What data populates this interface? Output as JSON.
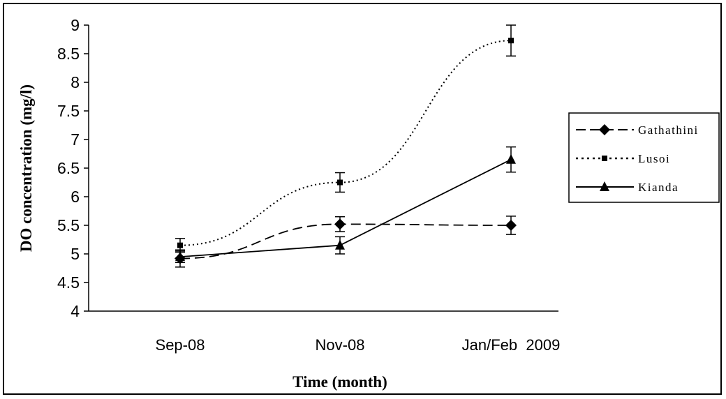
{
  "chart_data": {
    "type": "line",
    "categories": [
      "Sep-08",
      "Nov-08",
      "Jan/Feb  2009"
    ],
    "xlabel": "Time (month)",
    "ylabel": "DO concentration (mg/l)",
    "ylim": [
      4,
      9
    ],
    "yticks": [
      4,
      4.5,
      5,
      5.5,
      6,
      6.5,
      7,
      7.5,
      8,
      8.5,
      9
    ],
    "grid": false,
    "legend_position": "right",
    "series": [
      {
        "name": "Gathathini",
        "line_style": "dashed",
        "marker": "diamond",
        "values": [
          4.92,
          5.52,
          5.5
        ],
        "errors": [
          0.15,
          0.13,
          0.16
        ]
      },
      {
        "name": "Lusoi",
        "line_style": "dotted",
        "marker": "square",
        "values": [
          5.15,
          6.25,
          8.73
        ],
        "errors": [
          0.12,
          0.17,
          0.27
        ]
      },
      {
        "name": "Kianda",
        "line_style": "solid",
        "marker": "triangle",
        "values": [
          4.95,
          5.15,
          6.65
        ],
        "errors": [
          0.1,
          0.15,
          0.22
        ]
      }
    ]
  }
}
